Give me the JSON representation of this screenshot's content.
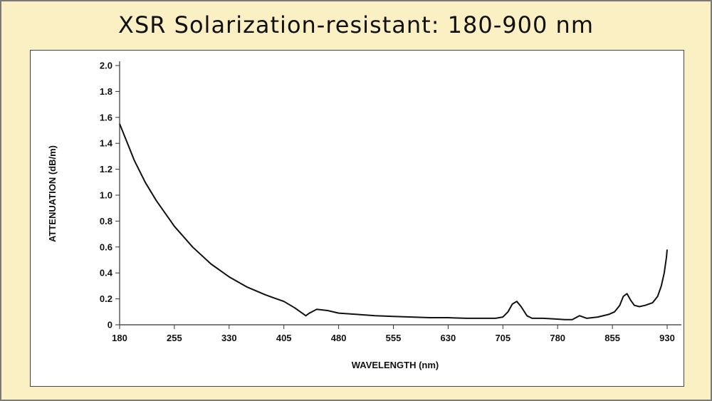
{
  "title": "XSR Solarization-resistant: 180-900 nm",
  "chart_data": {
    "type": "line",
    "title": "XSR Solarization-resistant: 180-900 nm",
    "xlabel": "WAVELENGTH (nm)",
    "ylabel": "ATTENUATION (dB/m)",
    "xlim": [
      180,
      930
    ],
    "ylim": [
      0,
      2.0
    ],
    "xticks": [
      180,
      255,
      330,
      405,
      480,
      555,
      630,
      705,
      780,
      855,
      930
    ],
    "xtick_labels": [
      "180",
      "255",
      "330",
      "405",
      "480",
      "555",
      "630",
      "705",
      "780",
      "855",
      "930"
    ],
    "yticks": [
      0,
      0.2,
      0.4,
      0.6,
      0.8,
      1.0,
      1.2,
      1.4,
      1.6,
      1.8,
      2.0
    ],
    "ytick_labels": [
      "0",
      "0.2",
      "0.4",
      "0.6",
      "0.8",
      "1.0",
      "1.2",
      "1.4",
      "1.6",
      "1.8",
      "2.0"
    ],
    "grid": false,
    "line_color": "#111111",
    "series": [
      {
        "x": [
          180,
          190,
          200,
          215,
          230,
          255,
          280,
          305,
          330,
          355,
          380,
          405,
          420,
          430,
          435,
          440,
          450,
          465,
          480,
          505,
          530,
          555,
          580,
          605,
          630,
          655,
          680,
          695,
          705,
          712,
          718,
          724,
          730,
          738,
          745,
          760,
          775,
          790,
          800,
          810,
          820,
          835,
          850,
          858,
          865,
          870,
          875,
          880,
          885,
          892,
          900,
          910,
          917,
          922,
          926,
          929,
          930
        ],
        "y": [
          1.55,
          1.41,
          1.27,
          1.1,
          0.96,
          0.76,
          0.6,
          0.47,
          0.37,
          0.29,
          0.23,
          0.18,
          0.13,
          0.09,
          0.07,
          0.09,
          0.12,
          0.11,
          0.09,
          0.08,
          0.07,
          0.065,
          0.06,
          0.055,
          0.055,
          0.05,
          0.05,
          0.05,
          0.06,
          0.1,
          0.16,
          0.18,
          0.14,
          0.07,
          0.05,
          0.05,
          0.045,
          0.04,
          0.04,
          0.07,
          0.05,
          0.06,
          0.08,
          0.1,
          0.15,
          0.22,
          0.24,
          0.19,
          0.15,
          0.14,
          0.15,
          0.17,
          0.22,
          0.3,
          0.4,
          0.52,
          0.58
        ]
      }
    ]
  }
}
